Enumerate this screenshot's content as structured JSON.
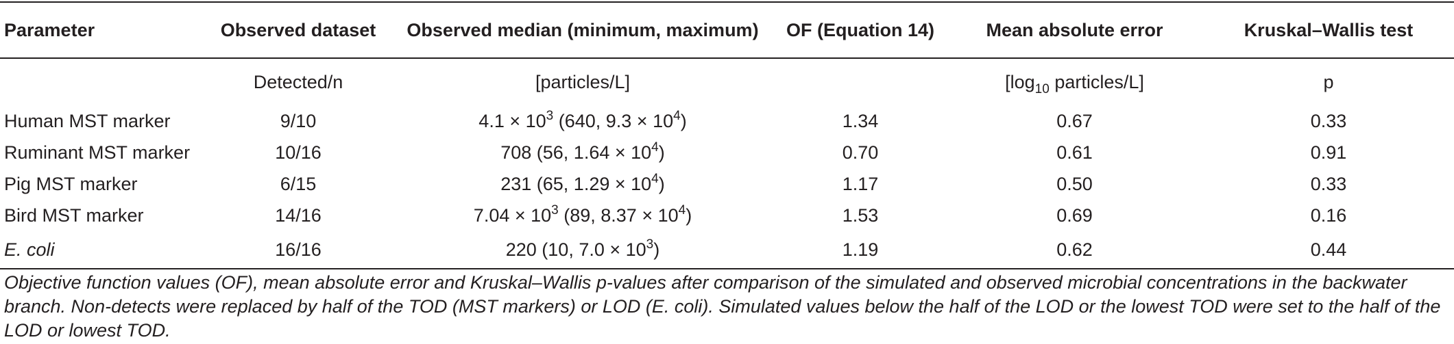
{
  "table": {
    "headers": [
      "Parameter",
      "Observed dataset",
      "Observed median (minimum, maximum)",
      "OF (Equation 14)",
      "Mean absolute error",
      "Kruskal–Wallis test"
    ],
    "units": {
      "dataset": "Detected/n",
      "median": "[particles/L]",
      "mae_pre": "[log",
      "mae_sub": "10",
      "mae_post": " particles/L]",
      "kw": "p"
    },
    "rows": [
      {
        "parameter": "Human MST marker",
        "dataset": "9/10",
        "median": {
          "m1": "4.1 × 10",
          "s1": "3",
          "m2": " (640, 9.3 × 10",
          "s2": "4",
          "m3": ")"
        },
        "of": "1.34",
        "mae": "0.67",
        "p": "0.33"
      },
      {
        "parameter": "Ruminant MST marker",
        "dataset": "10/16",
        "median": {
          "m1": "708 (56, 1.64 × 10",
          "s1": "4",
          "m2": ")"
        },
        "of": "0.70",
        "mae": "0.61",
        "p": "0.91"
      },
      {
        "parameter": "Pig MST marker",
        "dataset": "6/15",
        "median": {
          "m1": "231 (65, 1.29 × 10",
          "s1": "4",
          "m2": ")"
        },
        "of": "1.17",
        "mae": "0.50",
        "p": "0.33"
      },
      {
        "parameter": "Bird MST marker",
        "dataset": "14/16",
        "median": {
          "m1": "7.04 × 10",
          "s1": "3",
          "m2": " (89, 8.37 × 10",
          "s2": "4",
          "m3": ")"
        },
        "of": "1.53",
        "mae": "0.69",
        "p": "0.16"
      },
      {
        "parameter": "E. coli",
        "dataset": "16/16",
        "median": {
          "m1": "220 (10, 7.0 × 10",
          "s1": "3",
          "m2": ")"
        },
        "of": "1.19",
        "mae": "0.62",
        "p": "0.44"
      }
    ]
  },
  "caption": "Objective function values (OF), mean absolute error and Kruskal–Wallis p-values after comparison of the simulated and observed microbial concentrations in the backwater branch. Non-detects were replaced by half of the TOD (MST markers) or LOD (E. coli). Simulated values below the half of the LOD or the lowest TOD were set to the half of the LOD or lowest TOD."
}
